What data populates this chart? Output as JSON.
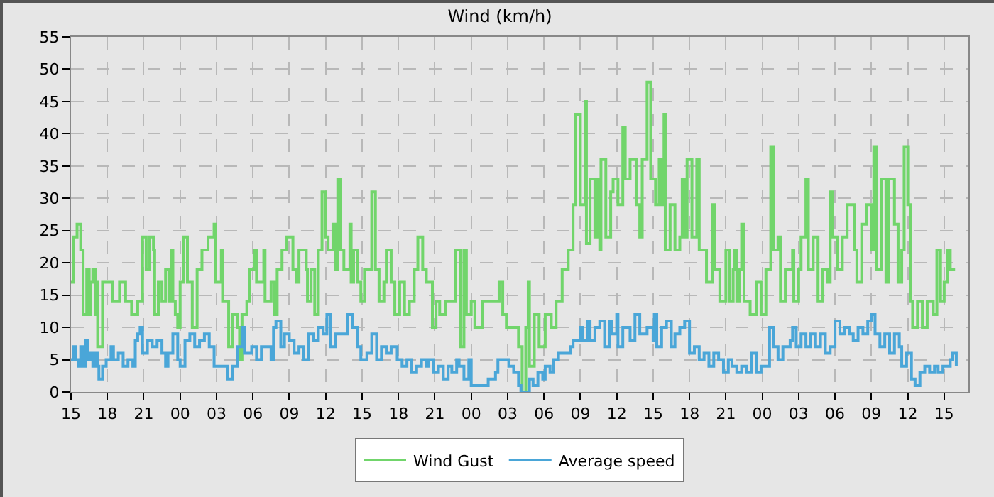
{
  "chart_data": {
    "type": "step",
    "title": "Wind (km/h)",
    "legend": "bottom",
    "grid": true,
    "line_style": "solid",
    "xlim": [
      15,
      89
    ],
    "ylim": [
      0,
      55
    ],
    "yticks": [
      0,
      5,
      10,
      15,
      20,
      25,
      30,
      35,
      40,
      45,
      50,
      55
    ],
    "xticks": [
      15,
      18,
      21,
      {
        "value": 24,
        "label": "00"
      },
      {
        "value": 27,
        "label": "03"
      },
      {
        "value": 30,
        "label": "06"
      },
      {
        "value": 33,
        "label": "09"
      },
      {
        "value": 36,
        "label": "12"
      },
      {
        "value": 39,
        "label": "15"
      },
      {
        "value": 42,
        "label": "18"
      },
      {
        "value": 45,
        "label": "21"
      },
      {
        "value": 48,
        "label": "00"
      },
      {
        "value": 51,
        "label": "03"
      },
      {
        "value": 54,
        "label": "06"
      },
      {
        "value": 57,
        "label": "09"
      },
      {
        "value": 60,
        "label": "12"
      },
      {
        "value": 63,
        "label": "15"
      },
      {
        "value": 66,
        "label": "18"
      },
      {
        "value": 69,
        "label": "21"
      },
      {
        "value": 72,
        "label": "00"
      },
      {
        "value": 75,
        "label": "03"
      },
      {
        "value": 78,
        "label": "06"
      },
      {
        "value": 81,
        "label": "09"
      },
      {
        "value": 84,
        "label": "12"
      },
      {
        "value": 87,
        "label": "15"
      }
    ],
    "series": [
      {
        "name": "Wind Gust",
        "color": "#71d56b",
        "x": [
          15,
          15.2,
          15.5,
          15.8,
          16,
          16.3,
          16.5,
          16.6,
          16.8,
          17,
          17.1,
          17.2,
          17.6,
          18,
          18.4,
          19,
          19.5,
          20,
          20.5,
          20.9,
          21.2,
          21.5,
          21.8,
          21.9,
          22.2,
          22.5,
          22.8,
          23.1,
          23.3,
          23.4,
          23.6,
          23.8,
          24,
          24.3,
          24.6,
          25,
          25.4,
          25.8,
          26.3,
          26.8,
          26.9,
          27.4,
          27.5,
          28,
          28.3,
          28.7,
          28.9,
          29.1,
          29.5,
          29.7,
          30.1,
          30.3,
          30.7,
          30.9,
          31,
          31.5,
          31.8,
          32,
          32.4,
          32.8,
          33.3,
          33.6,
          33.8,
          34.4,
          34.5,
          34.8,
          35.1,
          35.4,
          35.7,
          36,
          36.2,
          36.6,
          36.8,
          37,
          37.2,
          37.5,
          38,
          38.1,
          38.3,
          38.6,
          38.9,
          39.2,
          39.8,
          40.1,
          40.4,
          40.8,
          41,
          41.4,
          41.7,
          42.1,
          42.5,
          42.9,
          43.3,
          43.6,
          44,
          44.3,
          44.8,
          45.1,
          45.4,
          45.9,
          46.7,
          47.1,
          47.4,
          47.6,
          48,
          48.3,
          48.9,
          49.5,
          50,
          50.3,
          50.6,
          50.9,
          51.1,
          51.9,
          52.2,
          52.5,
          52.7,
          52.8,
          53.2,
          53.6,
          53.9,
          54.1,
          54.6,
          55,
          55.5,
          56,
          56.4,
          56.6,
          57,
          57.4,
          57.5,
          57.8,
          58.2,
          58.4,
          58.6,
          58.7,
          59.1,
          59.5,
          59.7,
          60.1,
          60.5,
          60.7,
          61.1,
          61.6,
          61.9,
          62.1,
          62.5,
          62.8,
          63.2,
          63.5,
          63.7,
          63.9,
          64,
          64.4,
          64.8,
          65.2,
          65.4,
          65.6,
          65.8,
          66.2,
          66.6,
          66.8,
          67.1,
          67.4,
          67.9,
          68.1,
          68.5,
          69,
          69.3,
          69.6,
          69.7,
          69.9,
          70.1,
          70.3,
          70.5,
          71,
          71.5,
          71.9,
          72.3,
          72.7,
          72.9,
          73.3,
          73.5,
          73.9,
          74.5,
          74.6,
          75,
          75.2,
          75.6,
          75.8,
          76.2,
          76.6,
          77,
          77.4,
          77.6,
          77.8,
          78.2,
          78.6,
          79,
          79.6,
          79.8,
          80.2,
          80.6,
          81,
          81.2,
          81.4,
          81.8,
          82.2,
          82.4,
          82.9,
          83.2,
          83.5,
          83.7,
          84,
          84.2,
          84.4,
          84.8,
          85.2,
          85.6,
          86.1,
          86.4,
          86.7,
          87,
          87.3,
          87.5,
          87.9
        ],
        "values": [
          17,
          24,
          26,
          22,
          12,
          19,
          12,
          17,
          19,
          12,
          17,
          7,
          17,
          17,
          14,
          17,
          14,
          12,
          14,
          24,
          19,
          24,
          22,
          12,
          17,
          14,
          19,
          14,
          22,
          14,
          12,
          10,
          17,
          24,
          17,
          10,
          19,
          22,
          24,
          26,
          17,
          22,
          14,
          7,
          12,
          10,
          5,
          12,
          14,
          19,
          22,
          17,
          17,
          22,
          14,
          17,
          12,
          19,
          22,
          24,
          19,
          17,
          22,
          19,
          14,
          19,
          12,
          22,
          31,
          24,
          22,
          26,
          19,
          33,
          22,
          19,
          26,
          17,
          22,
          17,
          14,
          19,
          31,
          19,
          14,
          17,
          22,
          17,
          12,
          17,
          12,
          14,
          19,
          24,
          19,
          17,
          10,
          14,
          12,
          14,
          22,
          7,
          22,
          12,
          14,
          10,
          14,
          14,
          14,
          17,
          12,
          10,
          10,
          7,
          0,
          10,
          17,
          4,
          12,
          7,
          7,
          12,
          10,
          14,
          19,
          22,
          29,
          43,
          29,
          45,
          23,
          33,
          24,
          33,
          22,
          36,
          24,
          31,
          33,
          29,
          41,
          33,
          36,
          29,
          24,
          36,
          48,
          33,
          29,
          36,
          29,
          43,
          22,
          29,
          22,
          24,
          33,
          24,
          36,
          24,
          36,
          22,
          22,
          17,
          29,
          19,
          14,
          22,
          14,
          19,
          22,
          14,
          19,
          26,
          14,
          12,
          17,
          12,
          19,
          38,
          22,
          24,
          14,
          19,
          22,
          14,
          19,
          24,
          33,
          19,
          24,
          14,
          19,
          17,
          31,
          24,
          19,
          24,
          29,
          22,
          17,
          26,
          29,
          22,
          38,
          19,
          33,
          17,
          33,
          26,
          17,
          22,
          38,
          29,
          14,
          10,
          14,
          10,
          14,
          12,
          22,
          14,
          17,
          22,
          19,
          19
        ]
      },
      {
        "name": "Average speed",
        "color": "#4aa6d8",
        "x": [
          15,
          15.2,
          15.4,
          15.6,
          15.8,
          16,
          16.2,
          16.4,
          16.6,
          16.8,
          17,
          17.2,
          17.3,
          17.6,
          17.9,
          18.3,
          18.5,
          18.9,
          19.3,
          19.7,
          20.1,
          20.3,
          20.5,
          20.7,
          20.9,
          21.3,
          21.7,
          22.1,
          22.5,
          22.8,
          23,
          23.4,
          23.8,
          24,
          24.4,
          24.8,
          25.2,
          25.6,
          26,
          26.4,
          26.8,
          27.5,
          27.9,
          28.3,
          28.7,
          29.1,
          29.3,
          29.9,
          30.3,
          30.7,
          31.1,
          31.5,
          31.7,
          31.9,
          32.3,
          32.6,
          33,
          33.4,
          33.8,
          34.2,
          34.6,
          35,
          35.4,
          35.8,
          36.1,
          36.4,
          36.8,
          37.4,
          37.8,
          38.2,
          38.6,
          38.9,
          39.4,
          39.8,
          40.2,
          40.6,
          41,
          41.4,
          41.9,
          42.3,
          42.7,
          43.1,
          43.5,
          43.9,
          44.3,
          44.5,
          44.9,
          45.3,
          45.7,
          46.1,
          46.4,
          46.8,
          47,
          47.4,
          47.8,
          48,
          48.8,
          49.4,
          50,
          50.2,
          50.7,
          51.1,
          51.5,
          51.9,
          52.1,
          52.5,
          52.8,
          53.1,
          53.5,
          53.9,
          54.1,
          54.5,
          54.8,
          55.2,
          55.8,
          56.2,
          56.4,
          57,
          57.2,
          57.6,
          57.8,
          58.2,
          58.6,
          59,
          59.4,
          59.6,
          60,
          60.1,
          60.5,
          61.1,
          61.5,
          61.9,
          62.5,
          63,
          63.1,
          63.3,
          63.7,
          64.1,
          64.5,
          64.8,
          65.2,
          65.6,
          66,
          66.4,
          66.8,
          67.2,
          67.6,
          68,
          68.4,
          68.8,
          69.2,
          69.5,
          69.9,
          70.3,
          70.7,
          71.1,
          71.5,
          71.9,
          72.3,
          72.6,
          72.9,
          73.3,
          73.7,
          74.3,
          74.5,
          74.8,
          75.2,
          75.6,
          76,
          76.4,
          76.8,
          77.2,
          77.6,
          78,
          78.4,
          78.8,
          79.2,
          79.5,
          79.9,
          80.3,
          80.7,
          81,
          81.3,
          81.7,
          82.1,
          82.5,
          82.9,
          83.3,
          83.5,
          83.9,
          84.3,
          84.6,
          85,
          85.4,
          85.8,
          86.2,
          86.5,
          86.9,
          87.5,
          87.7,
          88
        ],
        "values": [
          5,
          7,
          5,
          4,
          7,
          4,
          8,
          5,
          6,
          4,
          6,
          4,
          2,
          4,
          5,
          7,
          5,
          6,
          4,
          5,
          4,
          8,
          9,
          10,
          6,
          8,
          7,
          8,
          6,
          4,
          6,
          9,
          5,
          4,
          8,
          9,
          7,
          8,
          9,
          7,
          4,
          4,
          2,
          4,
          7,
          10,
          6,
          7,
          5,
          7,
          7,
          5,
          10,
          11,
          7,
          9,
          8,
          6,
          7,
          5,
          9,
          8,
          10,
          9,
          12,
          7,
          9,
          9,
          12,
          10,
          7,
          5,
          6,
          9,
          5,
          7,
          6,
          7,
          5,
          4,
          5,
          3,
          4,
          5,
          4,
          5,
          3,
          4,
          2,
          4,
          3,
          5,
          4,
          2,
          5,
          1,
          1,
          2,
          3,
          5,
          5,
          4,
          3,
          1,
          0,
          0,
          2,
          1,
          3,
          2,
          4,
          3,
          5,
          6,
          6,
          7,
          8,
          10,
          8,
          11,
          8,
          10,
          11,
          7,
          11,
          9,
          12,
          7,
          10,
          8,
          12,
          9,
          10,
          8,
          12,
          7,
          10,
          11,
          7,
          9,
          10,
          11,
          6,
          7,
          5,
          6,
          4,
          6,
          5,
          3,
          5,
          4,
          3,
          4,
          3,
          6,
          3,
          4,
          4,
          10,
          7,
          5,
          7,
          8,
          10,
          7,
          9,
          7,
          9,
          7,
          9,
          6,
          7,
          11,
          9,
          10,
          9,
          8,
          10,
          9,
          11,
          12,
          9,
          7,
          9,
          6,
          9,
          7,
          4,
          6,
          2,
          1,
          3,
          4,
          3,
          4,
          3,
          4,
          5,
          6,
          4
        ]
      }
    ]
  }
}
